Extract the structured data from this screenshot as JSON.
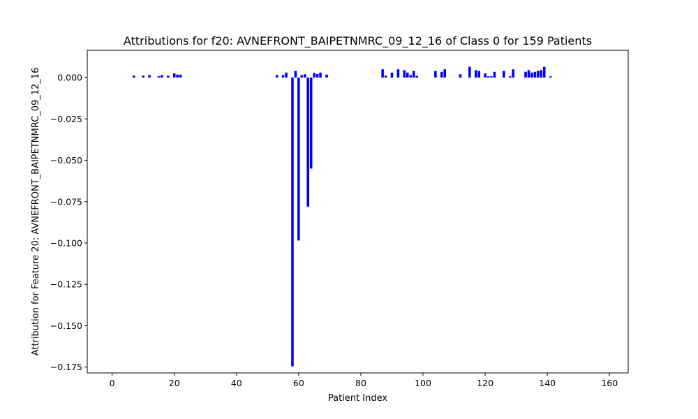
{
  "chart_data": {
    "type": "bar",
    "title": "Attributions for f20: AVNEFRONT_BAIPETNMRC_09_12_16 of Class 0 for 159 Patients",
    "xlabel": "Patient Index",
    "ylabel": "Attribution for Feature 20: AVNEFRONT_BAIPETNMRC_09_12_16",
    "xlim": [
      -8,
      166
    ],
    "ylim": [
      -0.1785,
      0.0165
    ],
    "xticks": [
      0,
      20,
      40,
      60,
      80,
      100,
      120,
      140,
      160
    ],
    "yticks": [
      0.0,
      -0.025,
      -0.05,
      -0.075,
      -0.1,
      -0.125,
      -0.15,
      -0.175
    ],
    "ytick_labels": [
      "0.000",
      "−0.025",
      "−0.050",
      "−0.075",
      "−0.100",
      "−0.125",
      "−0.150",
      "−0.175"
    ],
    "bar_color": "#0000ff",
    "grid": false,
    "legend": "none",
    "x": [
      7,
      10,
      12,
      15,
      16,
      18,
      20,
      21,
      22,
      53,
      55,
      56,
      58,
      59,
      60,
      61,
      62,
      63,
      64,
      65,
      66,
      67,
      69,
      87,
      88,
      90,
      92,
      94,
      95,
      96,
      97,
      98,
      104,
      106,
      107,
      112,
      115,
      117,
      118,
      120,
      121,
      122,
      123,
      126,
      128,
      129,
      133,
      134,
      135,
      136,
      137,
      138,
      139,
      141
    ],
    "values": [
      0.0012,
      0.0012,
      0.0015,
      0.0008,
      0.0015,
      0.0012,
      0.0025,
      0.0018,
      0.0018,
      0.0015,
      0.0015,
      0.003,
      -0.1745,
      0.004,
      -0.0985,
      0.0015,
      0.002,
      -0.078,
      -0.055,
      0.0028,
      0.0022,
      0.003,
      0.0018,
      0.005,
      0.0012,
      0.003,
      0.005,
      0.0045,
      0.003,
      0.0015,
      0.004,
      0.001,
      0.004,
      0.0035,
      0.005,
      0.002,
      0.0065,
      0.0045,
      0.004,
      0.0025,
      0.0008,
      0.0008,
      0.0035,
      0.004,
      0.0008,
      0.005,
      0.0035,
      0.0045,
      0.003,
      0.0035,
      0.004,
      0.0045,
      0.0065,
      0.0008
    ]
  }
}
